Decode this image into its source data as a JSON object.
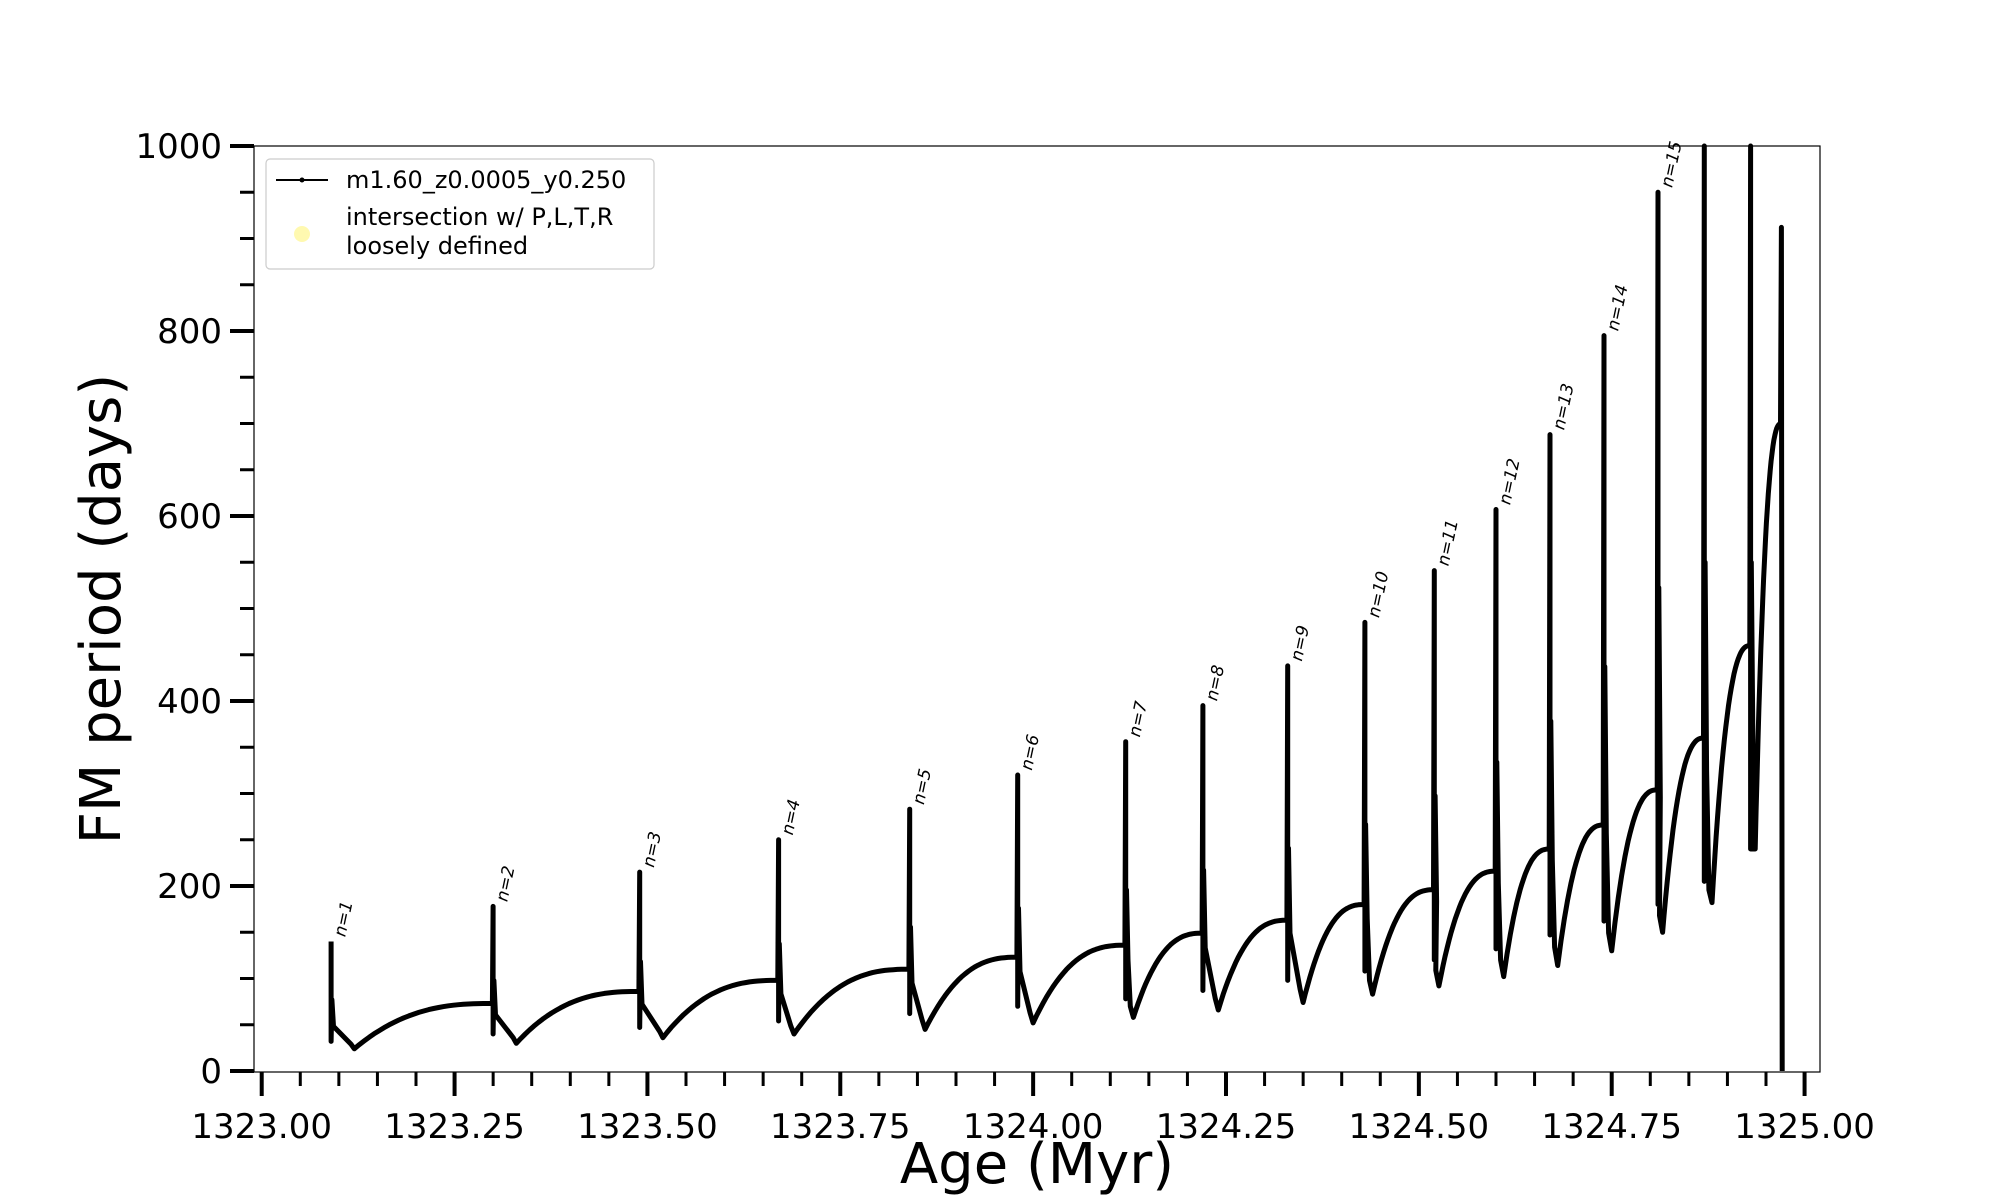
{
  "chart_data": {
    "type": "line",
    "xlabel": "Age (Myr)",
    "ylabel": "FM period (days)",
    "xlim": [
      1322.99,
      1325.02
    ],
    "ylim": [
      0,
      1000
    ],
    "x_ticks": [
      "1323.00",
      "1323.25",
      "1323.50",
      "1323.75",
      "1324.00",
      "1324.25",
      "1324.50",
      "1324.75",
      "1325.00"
    ],
    "y_ticks": [
      "0",
      "200",
      "400",
      "600",
      "800",
      "1000"
    ],
    "legend": {
      "placement": "upper-left",
      "entries": [
        "m1.60_z0.0005_y0.250",
        "intersection w/ P,L,T,R\nloosely defined"
      ]
    },
    "colors": {
      "series": "#000000",
      "intersection_marker": "#fff9b0"
    },
    "series": [
      {
        "name": "m1.60_z0.0005_y0.250",
        "pulses": [
          {
            "label": "n=1",
            "age": 1323.09,
            "peak": 140,
            "low": 32,
            "trough_age": 1323.12,
            "trough": 24,
            "pre": 0
          },
          {
            "label": "n=2",
            "age": 1323.3,
            "peak": 178,
            "low": 40,
            "trough_age": 1323.33,
            "trough": 30,
            "pre": 73
          },
          {
            "label": "n=3",
            "age": 1323.49,
            "peak": 215,
            "low": 47,
            "trough_age": 1323.52,
            "trough": 36,
            "pre": 86
          },
          {
            "label": "n=4",
            "age": 1323.67,
            "peak": 250,
            "low": 54,
            "trough_age": 1323.69,
            "trough": 40,
            "pre": 98
          },
          {
            "label": "n=5",
            "age": 1323.84,
            "peak": 283,
            "low": 62,
            "trough_age": 1323.86,
            "trough": 45,
            "pre": 110
          },
          {
            "label": "n=6",
            "age": 1323.98,
            "peak": 320,
            "low": 70,
            "trough_age": 1324.0,
            "trough": 52,
            "pre": 123
          },
          {
            "label": "n=7",
            "age": 1324.12,
            "peak": 356,
            "low": 78,
            "trough_age": 1324.13,
            "trough": 58,
            "pre": 136
          },
          {
            "label": "n=8",
            "age": 1324.22,
            "peak": 395,
            "low": 87,
            "trough_age": 1324.24,
            "trough": 66,
            "pre": 149
          },
          {
            "label": "n=9",
            "age": 1324.33,
            "peak": 438,
            "low": 98,
            "trough_age": 1324.35,
            "trough": 74,
            "pre": 163
          },
          {
            "label": "n=10",
            "age": 1324.43,
            "peak": 485,
            "low": 108,
            "trough_age": 1324.44,
            "trough": 83,
            "pre": 180
          },
          {
            "label": "n=11",
            "age": 1324.52,
            "peak": 541,
            "low": 120,
            "trough_age": 1324.52,
            "trough": 92,
            "pre": 196
          },
          {
            "label": "n=12",
            "age": 1324.6,
            "peak": 607,
            "low": 132,
            "trough_age": 1324.61,
            "trough": 102,
            "pre": 216
          },
          {
            "label": "n=13",
            "age": 1324.67,
            "peak": 688,
            "low": 147,
            "trough_age": 1324.68,
            "trough": 114,
            "pre": 240
          },
          {
            "label": "n=14",
            "age": 1324.74,
            "peak": 795,
            "low": 162,
            "trough_age": 1324.75,
            "trough": 130,
            "pre": 266
          },
          {
            "label": "n=15",
            "age": 1324.81,
            "peak": 950,
            "low": 180,
            "trough_age": 1324.81,
            "trough": 150,
            "pre": 304
          },
          {
            "label": "",
            "age": 1324.87,
            "peak": 1000,
            "low": 205,
            "trough_age": 1324.88,
            "trough": 182,
            "pre": 360
          },
          {
            "label": "",
            "age": 1324.93,
            "peak": 1000,
            "low": 240,
            "trough_age": 1324.93,
            "trough": 240,
            "pre": 460
          }
        ],
        "final_rise": {
          "end_age": 1324.97,
          "end_period": 700,
          "spike_age": 1324.97,
          "spike_peak": 912,
          "spike_low": 0
        }
      }
    ]
  }
}
